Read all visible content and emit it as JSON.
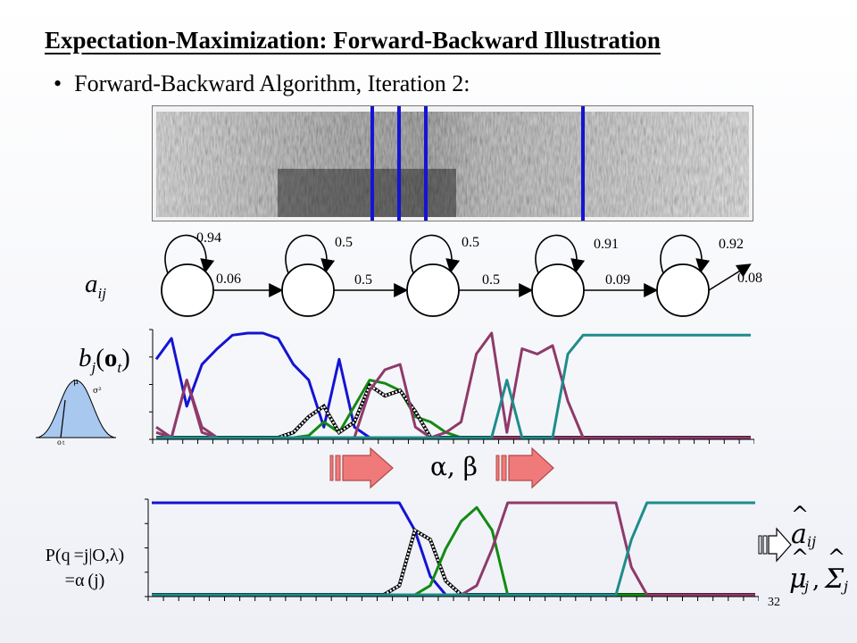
{
  "title": "Expectation-Maximization: Forward-Backward Illustration",
  "bullet": {
    "glyph": "•",
    "text": "Forward-Backward Algorithm,  Iteration 2:"
  },
  "hmm": {
    "self_probs": [
      "0.94",
      "0.5",
      "0.5",
      "0.91",
      "0.92"
    ],
    "trans_probs": [
      "0.06",
      "0.5",
      "0.5",
      "0.09",
      "0.08"
    ],
    "aij_label": "a",
    "aij_sub": "ij"
  },
  "emission_label": {
    "b": "b",
    "sub_j": "j",
    "o": "o",
    "sub_t": "t"
  },
  "gauss_labels": {
    "mu": "μ",
    "sigma": "σ²",
    "o": "o",
    "t": "t"
  },
  "alpha_beta": "α,  β",
  "posterior_label": {
    "line1": "P(q =j|O,λ)",
    "line2": "=α (j)"
  },
  "reestimate": {
    "a": "a",
    "a_sub": "ij",
    "mu": "μ",
    "mu_sub": "j",
    "sigma": "Σ",
    "sigma_sub": "j"
  },
  "page_number": "32",
  "colors": {
    "blue": "#1414d2",
    "green": "#138a13",
    "magenta": "#8e3a6a",
    "teal": "#1e8c8c",
    "arrow_red": "#f07a7a",
    "gauss_fill": "#a8c8f0"
  },
  "chart_data": [
    {
      "type": "line",
      "series": [
        {
          "values": [
            0.75,
            0.95,
            0.3,
            0.7,
            0.85,
            0.98,
            1.0,
            1.0,
            0.95,
            0.7,
            0.55,
            0.1,
            0.75,
            0.1,
            0,
            0,
            0,
            0,
            0,
            0,
            0,
            0,
            0,
            0,
            0,
            0,
            0,
            0,
            0,
            0,
            0,
            0,
            0,
            0,
            0,
            0,
            0,
            0,
            0,
            0
          ]
        },
        {
          "values": [
            0,
            0,
            0,
            0,
            0,
            0,
            0,
            0,
            0,
            0,
            0.02,
            0.15,
            0.05,
            0.3,
            0.55,
            0.52,
            0.45,
            0.2,
            0.15,
            0.05,
            0,
            0,
            0,
            0,
            0,
            0,
            0,
            0,
            0,
            0,
            0,
            0,
            0,
            0,
            0,
            0,
            0,
            0,
            0,
            0
          ]
        },
        {
          "values": [
            0,
            0,
            0,
            0,
            0,
            0,
            0,
            0,
            0,
            0.05,
            0.2,
            0.3,
            0.05,
            0.15,
            0.5,
            0.4,
            0.45,
            0.25,
            0,
            0,
            0,
            0,
            0,
            0,
            0,
            0,
            0,
            0,
            0,
            0,
            0,
            0,
            0,
            0,
            0,
            0,
            0,
            0,
            0,
            0
          ]
        },
        {
          "values": [
            0.1,
            0,
            0.55,
            0.05,
            0,
            0,
            0,
            0,
            0,
            0,
            0,
            0,
            0,
            0,
            0.45,
            0.65,
            0.7,
            0.1,
            0,
            0,
            0,
            0,
            0,
            0,
            0,
            0,
            0,
            0,
            0,
            0,
            0,
            0,
            0,
            0,
            0,
            0,
            0,
            0,
            0,
            0
          ]
        },
        {
          "values": [
            0.05,
            0,
            0.55,
            0.1,
            0,
            0,
            0,
            0,
            0,
            0,
            0,
            0,
            0,
            0,
            0,
            0,
            0,
            0,
            0,
            0.05,
            0.15,
            0.8,
            1.0,
            0.05,
            0.85,
            0.8,
            0.88,
            0.35,
            0,
            0,
            0,
            0,
            0,
            0,
            0,
            0,
            0,
            0,
            0,
            0
          ]
        },
        {
          "values": [
            0,
            0,
            0,
            0,
            0,
            0,
            0,
            0,
            0,
            0,
            0,
            0,
            0,
            0,
            0,
            0,
            0,
            0,
            0,
            0,
            0,
            0,
            0,
            0.55,
            0,
            0,
            0,
            0.8,
            0.98,
            0.98,
            0.98,
            0.98,
            0.98,
            0.98,
            0.98,
            0.98,
            0.98,
            0.98,
            0.98,
            0.98
          ]
        }
      ],
      "ylim": [
        0,
        1
      ]
    },
    {
      "type": "line",
      "series": [
        {
          "values": [
            1,
            1,
            1,
            1,
            1,
            1,
            1,
            1,
            1,
            1,
            1,
            1,
            1,
            1,
            1,
            1,
            1,
            0.7,
            0.2,
            0,
            0,
            0,
            0,
            0,
            0,
            0,
            0,
            0,
            0,
            0,
            0,
            0,
            0,
            0,
            0,
            0,
            0,
            0,
            0,
            0
          ]
        },
        {
          "values": [
            0,
            0,
            0,
            0,
            0,
            0,
            0,
            0,
            0,
            0,
            0,
            0,
            0,
            0,
            0,
            0,
            0.1,
            0.7,
            0.6,
            0.15,
            0,
            0,
            0,
            0,
            0,
            0,
            0,
            0,
            0,
            0,
            0,
            0,
            0,
            0,
            0,
            0,
            0,
            0,
            0,
            0
          ]
        },
        {
          "values": [
            0,
            0,
            0,
            0,
            0,
            0,
            0,
            0,
            0,
            0,
            0,
            0,
            0,
            0,
            0,
            0,
            0,
            0,
            0.1,
            0.5,
            0.8,
            0.95,
            0.7,
            0,
            0,
            0,
            0,
            0,
            0,
            0,
            0,
            0,
            0,
            0,
            0,
            0,
            0,
            0,
            0,
            0
          ]
        },
        {
          "values": [
            0,
            0,
            0,
            0,
            0,
            0,
            0,
            0,
            0,
            0,
            0,
            0,
            0,
            0,
            0,
            0,
            0,
            0,
            0,
            0,
            0,
            0.1,
            0.5,
            1,
            1,
            1,
            1,
            1,
            1,
            1,
            1,
            0.3,
            0,
            0,
            0,
            0,
            0,
            0,
            0,
            0
          ]
        },
        {
          "values": [
            0,
            0,
            0,
            0,
            0,
            0,
            0,
            0,
            0,
            0,
            0,
            0,
            0,
            0,
            0,
            0,
            0,
            0,
            0,
            0,
            0,
            0,
            0,
            0,
            0,
            0,
            0,
            0,
            0,
            0,
            0,
            0.6,
            1,
            1,
            1,
            1,
            1,
            1,
            1,
            1
          ]
        }
      ],
      "ylim": [
        0,
        1
      ]
    }
  ]
}
